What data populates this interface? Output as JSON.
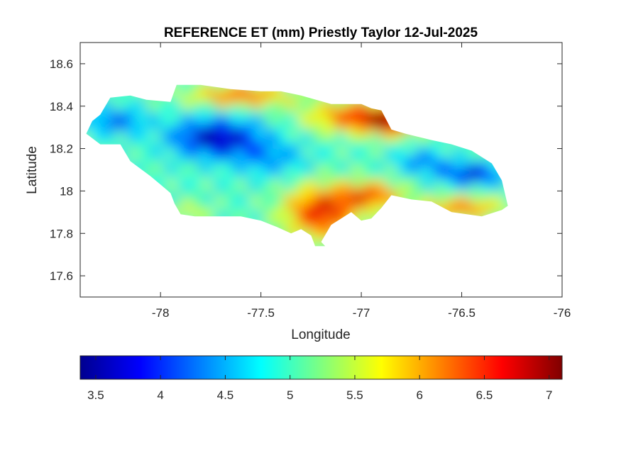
{
  "chart_data": {
    "type": "heatmap",
    "title": "REFERENCE ET (mm) Priestly Taylor 12-Jul-2025",
    "xlabel": "Longitude",
    "ylabel": "Latitude",
    "xlim": [
      -78.4,
      -76
    ],
    "ylim": [
      17.5,
      18.7
    ],
    "xticks": [
      -78,
      -77.5,
      -77,
      -76.5,
      -76
    ],
    "xtick_labels": [
      "-78",
      "-77.5",
      "-77",
      "-76.5",
      "-76"
    ],
    "yticks": [
      17.6,
      17.8,
      18,
      18.2,
      18.4,
      18.6
    ],
    "ytick_labels": [
      "17.6",
      "17.8",
      "18",
      "18.2",
      "18.4",
      "18.6"
    ],
    "colorbar": {
      "colormap": "jet",
      "range": [
        3.38,
        7.1
      ],
      "ticks": [
        3.5,
        4,
        4.5,
        5,
        5.5,
        6,
        6.5,
        7
      ],
      "tick_labels": [
        "3.5",
        "4",
        "4.5",
        "5",
        "5.5",
        "6",
        "6.5",
        "7"
      ]
    },
    "outline": [
      [
        -78.37,
        18.27
      ],
      [
        -78.34,
        18.33
      ],
      [
        -78.3,
        18.36
      ],
      [
        -78.25,
        18.44
      ],
      [
        -78.15,
        18.45
      ],
      [
        -78.07,
        18.43
      ],
      [
        -77.95,
        18.42
      ],
      [
        -77.92,
        18.5
      ],
      [
        -77.8,
        18.5
      ],
      [
        -77.65,
        18.48
      ],
      [
        -77.5,
        18.47
      ],
      [
        -77.4,
        18.47
      ],
      [
        -77.3,
        18.45
      ],
      [
        -77.15,
        18.41
      ],
      [
        -77.0,
        18.41
      ],
      [
        -76.95,
        18.39
      ],
      [
        -76.9,
        18.38
      ],
      [
        -76.85,
        18.29
      ],
      [
        -76.78,
        18.27
      ],
      [
        -76.65,
        18.24
      ],
      [
        -76.55,
        18.22
      ],
      [
        -76.45,
        18.19
      ],
      [
        -76.35,
        18.13
      ],
      [
        -76.3,
        18.05
      ],
      [
        -76.27,
        17.93
      ],
      [
        -76.3,
        17.91
      ],
      [
        -76.4,
        17.88
      ],
      [
        -76.55,
        17.9
      ],
      [
        -76.65,
        17.95
      ],
      [
        -76.75,
        17.96
      ],
      [
        -76.85,
        17.98
      ],
      [
        -76.9,
        17.92
      ],
      [
        -76.95,
        17.87
      ],
      [
        -77.0,
        17.86
      ],
      [
        -77.05,
        17.9
      ],
      [
        -77.1,
        17.87
      ],
      [
        -77.15,
        17.84
      ],
      [
        -77.2,
        17.76
      ],
      [
        -77.18,
        17.74
      ],
      [
        -77.23,
        17.74
      ],
      [
        -77.25,
        17.79
      ],
      [
        -77.3,
        17.82
      ],
      [
        -77.35,
        17.8
      ],
      [
        -77.42,
        17.83
      ],
      [
        -77.5,
        17.86
      ],
      [
        -77.6,
        17.88
      ],
      [
        -77.75,
        17.88
      ],
      [
        -77.83,
        17.88
      ],
      [
        -77.9,
        17.89
      ],
      [
        -77.93,
        17.94
      ],
      [
        -77.95,
        17.99
      ],
      [
        -78.0,
        18.03
      ],
      [
        -78.05,
        18.07
      ],
      [
        -78.15,
        18.14
      ],
      [
        -78.2,
        18.22
      ],
      [
        -78.3,
        18.22
      ],
      [
        -78.37,
        18.27
      ]
    ]
  }
}
